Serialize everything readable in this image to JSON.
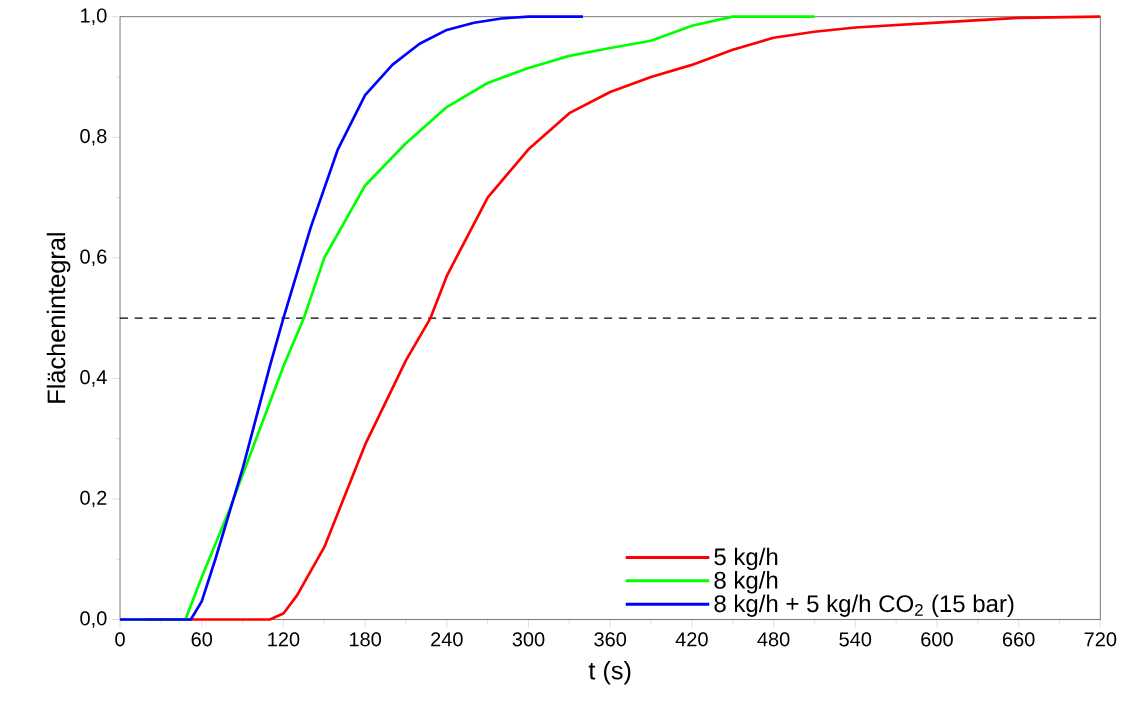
{
  "chart_data": {
    "type": "line",
    "xlabel": "t (s)",
    "ylabel": "Flächenintegral",
    "xlim": [
      0,
      720
    ],
    "ylim": [
      0,
      1.0
    ],
    "xticks": [
      0,
      60,
      120,
      180,
      240,
      300,
      360,
      420,
      480,
      540,
      600,
      660,
      720
    ],
    "yticks": [
      {
        "value": 0,
        "label": "0,0"
      },
      {
        "value": 0.2,
        "label": "0,2"
      },
      {
        "value": 0.4,
        "label": "0,4"
      },
      {
        "value": 0.6,
        "label": "0,6"
      },
      {
        "value": 0.8,
        "label": "0,8"
      },
      {
        "value": 1.0,
        "label": "1,0"
      }
    ],
    "grid": false,
    "legend": "bottom right",
    "marker": "none",
    "line_style": "solid",
    "ref_lines": [
      {
        "axis": "y",
        "value": 0.5,
        "color": "#000000",
        "line_style": "dashed"
      }
    ],
    "series": [
      {
        "name": "5 kg/h",
        "color": "#ff0000",
        "x": [
          20,
          60,
          100,
          110,
          120,
          130,
          150,
          180,
          210,
          228,
          240,
          270,
          300,
          330,
          360,
          390,
          420,
          450,
          480,
          510,
          540,
          600,
          660,
          720
        ],
        "values": [
          0,
          0,
          0,
          0,
          0.01,
          0.04,
          0.12,
          0.29,
          0.43,
          0.5,
          0.57,
          0.7,
          0.78,
          0.84,
          0.875,
          0.9,
          0.92,
          0.945,
          0.965,
          0.975,
          0.982,
          0.99,
          0.998,
          1.0
        ]
      },
      {
        "name": "8 kg/h",
        "color": "#00ff00",
        "x": [
          0,
          48,
          60,
          80,
          100,
          120,
          135,
          150,
          180,
          210,
          240,
          270,
          300,
          330,
          360,
          390,
          420,
          450,
          510
        ],
        "values": [
          0,
          0,
          0.07,
          0.18,
          0.3,
          0.42,
          0.5,
          0.6,
          0.72,
          0.79,
          0.85,
          0.89,
          0.915,
          0.935,
          0.948,
          0.96,
          0.985,
          1.0,
          1.0
        ]
      },
      {
        "name": "8 kg/h + 5 kg/h CO$_{2}$ (15 bar)",
        "color": "#0000ff",
        "x": [
          0,
          52,
          60,
          70,
          90,
          110,
          120,
          140,
          160,
          180,
          200,
          220,
          240,
          260,
          280,
          300,
          340
        ],
        "values": [
          0,
          0,
          0.03,
          0.1,
          0.25,
          0.42,
          0.5,
          0.65,
          0.78,
          0.87,
          0.92,
          0.955,
          0.978,
          0.99,
          0.997,
          1.0,
          1.0
        ]
      }
    ]
  }
}
